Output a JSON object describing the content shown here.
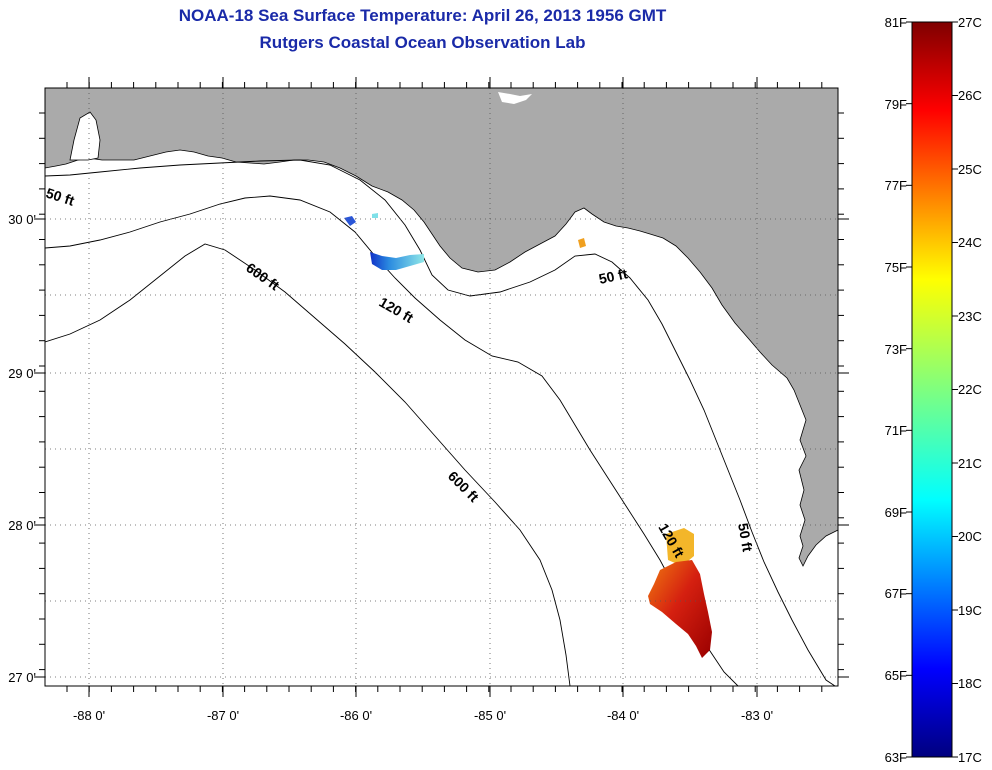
{
  "title": {
    "line1": "NOAA-18 Sea Surface Temperature:  April 26, 2013 1956 GMT",
    "line2": "Rutgers Coastal Ocean Observation Lab"
  },
  "map": {
    "lon_labels": [
      "-88 0'",
      "-87 0'",
      "-86 0'",
      "-85 0'",
      "-84 0'",
      "-83 0'"
    ],
    "lat_labels": [
      "30 0'",
      "29 0'",
      "28 0'",
      "27 0'"
    ],
    "contour_labels": [
      "50 ft",
      "600 ft",
      "120 ft",
      "50 ft",
      "600 ft",
      "120 ft",
      "50 ft"
    ],
    "land_color": "#aaaaaa",
    "water_color": "#ffffff"
  },
  "colorbar": {
    "fahrenheit_labels": [
      "81F",
      "79F",
      "77F",
      "75F",
      "73F",
      "71F",
      "69F",
      "67F",
      "65F",
      "63F"
    ],
    "celsius_labels": [
      "27C",
      "26C",
      "25C",
      "24C",
      "23C",
      "22C",
      "21C",
      "20C",
      "19C",
      "18C",
      "17C"
    ],
    "range_celsius": [
      17,
      27
    ],
    "colormap": "jet"
  }
}
